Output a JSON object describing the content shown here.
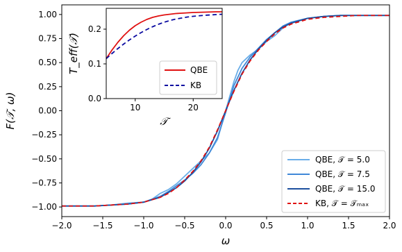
{
  "chart_data": [
    {
      "type": "line",
      "xlabel": "ω",
      "ylabel": "F(𝒯, ω)",
      "xlim": [
        -2.0,
        2.0
      ],
      "ylim": [
        -1.1,
        1.1
      ],
      "xticks": [
        "−2.0",
        "−1.5",
        "−1.0",
        "−0.5",
        "0.0",
        "0.5",
        "1.0",
        "1.5",
        "2.0"
      ],
      "yticks": [
        "−1.00",
        "−0.75",
        "−0.50",
        "−0.25",
        "0.00",
        "0.25",
        "0.50",
        "0.75",
        "1.00"
      ],
      "legend_position": "lower-right",
      "series": [
        {
          "name": "QBE, 𝒯 = 5.0",
          "color": "#6aaee8",
          "style": "solid",
          "x": [
            -2.0,
            -1.8,
            -1.6,
            -1.4,
            -1.2,
            -1.0,
            -0.9,
            -0.8,
            -0.7,
            -0.6,
            -0.5,
            -0.4,
            -0.3,
            -0.2,
            -0.1,
            0.0,
            0.1,
            0.15,
            0.2,
            0.3,
            0.4,
            0.5,
            0.6,
            0.7,
            0.8,
            1.0,
            1.2,
            1.4,
            1.6,
            1.8,
            2.0
          ],
          "y": [
            -0.99,
            -0.99,
            -0.99,
            -0.98,
            -0.96,
            -0.95,
            -0.92,
            -0.86,
            -0.82,
            -0.76,
            -0.68,
            -0.6,
            -0.52,
            -0.44,
            -0.3,
            0.0,
            0.3,
            0.42,
            0.5,
            0.58,
            0.64,
            0.72,
            0.78,
            0.86,
            0.92,
            0.96,
            0.98,
            0.99,
            0.99,
            0.99,
            0.99
          ]
        },
        {
          "name": "QBE, 𝒯 = 7.5",
          "color": "#3f88d8",
          "style": "solid",
          "x": [
            -2.0,
            -1.8,
            -1.6,
            -1.4,
            -1.2,
            -1.0,
            -0.8,
            -0.7,
            -0.6,
            -0.5,
            -0.4,
            -0.3,
            -0.2,
            -0.1,
            0.0,
            0.1,
            0.2,
            0.3,
            0.4,
            0.5,
            0.6,
            0.7,
            0.8,
            1.0,
            1.2,
            1.4,
            1.6,
            1.8,
            2.0
          ],
          "y": [
            -0.99,
            -0.99,
            -0.99,
            -0.98,
            -0.97,
            -0.95,
            -0.89,
            -0.84,
            -0.78,
            -0.72,
            -0.65,
            -0.56,
            -0.44,
            -0.28,
            -0.02,
            0.26,
            0.44,
            0.56,
            0.65,
            0.74,
            0.81,
            0.88,
            0.92,
            0.96,
            0.98,
            0.99,
            0.99,
            0.99,
            0.99
          ]
        },
        {
          "name": "QBE, 𝒯 = 15.0",
          "color": "#1c4f9e",
          "style": "solid",
          "x": [
            -2.0,
            -1.8,
            -1.6,
            -1.4,
            -1.2,
            -1.0,
            -0.8,
            -0.7,
            -0.6,
            -0.5,
            -0.4,
            -0.3,
            -0.2,
            -0.1,
            0.0,
            0.1,
            0.2,
            0.3,
            0.4,
            0.5,
            0.6,
            0.7,
            0.8,
            1.0,
            1.2,
            1.4,
            1.6,
            1.8,
            2.0
          ],
          "y": [
            -0.99,
            -0.99,
            -0.99,
            -0.98,
            -0.97,
            -0.95,
            -0.9,
            -0.85,
            -0.8,
            -0.73,
            -0.64,
            -0.53,
            -0.39,
            -0.21,
            0.0,
            0.21,
            0.39,
            0.53,
            0.64,
            0.73,
            0.81,
            0.87,
            0.91,
            0.96,
            0.98,
            0.99,
            0.99,
            0.99,
            0.99
          ]
        },
        {
          "name": "KB, 𝒯 = 𝒯ₘₐₓ",
          "color": "#e01010",
          "style": "dashed",
          "x": [
            -2.0,
            -1.8,
            -1.6,
            -1.4,
            -1.2,
            -1.0,
            -0.8,
            -0.7,
            -0.6,
            -0.5,
            -0.4,
            -0.3,
            -0.2,
            -0.1,
            0.0,
            0.1,
            0.2,
            0.3,
            0.4,
            0.5,
            0.6,
            0.7,
            0.8,
            1.0,
            1.2,
            1.4,
            1.6,
            1.8,
            2.0
          ],
          "y": [
            -0.99,
            -0.99,
            -0.99,
            -0.98,
            -0.97,
            -0.95,
            -0.9,
            -0.86,
            -0.8,
            -0.72,
            -0.63,
            -0.52,
            -0.38,
            -0.2,
            0.0,
            0.2,
            0.38,
            0.52,
            0.63,
            0.72,
            0.8,
            0.86,
            0.9,
            0.95,
            0.97,
            0.98,
            0.99,
            0.99,
            0.99
          ]
        }
      ]
    },
    {
      "type": "line",
      "xlabel": "𝒯",
      "ylabel": "T_eff(𝒯)",
      "xlim": [
        5,
        25
      ],
      "ylim": [
        0.0,
        0.26
      ],
      "xticks": [
        "10",
        "20"
      ],
      "yticks": [
        "0.0",
        "0.1",
        "0.2"
      ],
      "legend_position": "lower-right",
      "series": [
        {
          "name": "QBE",
          "color": "#e01010",
          "style": "solid",
          "x": [
            5,
            6,
            7,
            8,
            9,
            10,
            11,
            12,
            13,
            14,
            15,
            16,
            17,
            18,
            19,
            20,
            22,
            24,
            25
          ],
          "y": [
            0.115,
            0.14,
            0.162,
            0.181,
            0.197,
            0.21,
            0.22,
            0.228,
            0.234,
            0.238,
            0.241,
            0.243,
            0.245,
            0.246,
            0.247,
            0.248,
            0.249,
            0.25,
            0.25
          ]
        },
        {
          "name": "KB",
          "color": "#0a0aa0",
          "style": "dashed",
          "x": [
            5,
            6,
            7,
            8,
            9,
            10,
            11,
            12,
            13,
            14,
            15,
            16,
            17,
            18,
            19,
            20,
            22,
            24,
            25
          ],
          "y": [
            0.115,
            0.13,
            0.144,
            0.157,
            0.169,
            0.18,
            0.19,
            0.199,
            0.207,
            0.214,
            0.22,
            0.225,
            0.229,
            0.232,
            0.235,
            0.237,
            0.24,
            0.242,
            0.243
          ]
        }
      ]
    }
  ]
}
